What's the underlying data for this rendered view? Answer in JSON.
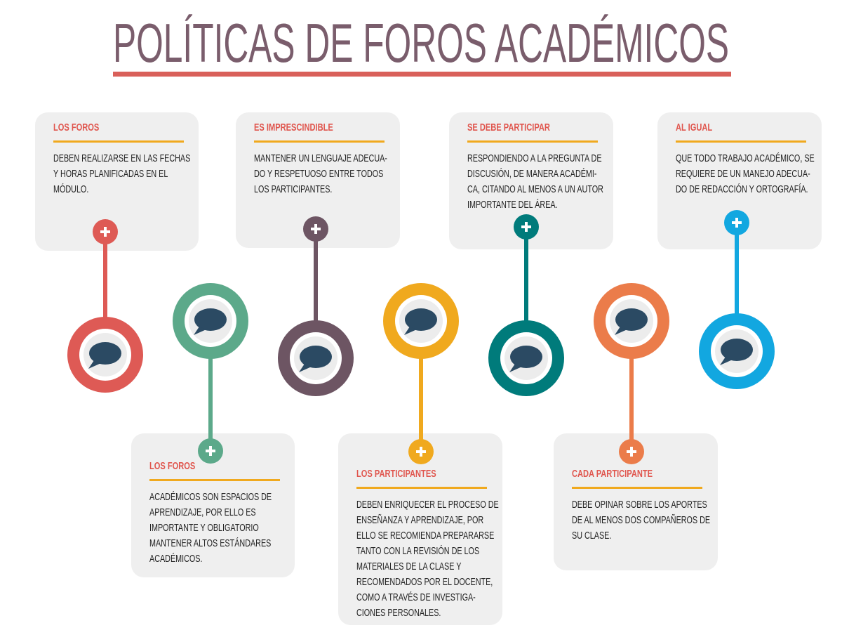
{
  "title": "POLÍTICAS DE FOROS ACADÉMICOS",
  "items": [
    {
      "heading": "LOS FOROS",
      "lines": [
        "DEBEN REALIZARSE EN LAS FECHAS",
        "Y HORAS PLANIFICADAS EN EL",
        "MÓDULO."
      ]
    },
    {
      "heading": "LOS FOROS",
      "lines": [
        "ACADÉMICOS SON ESPACIOS DE",
        "APRENDIZAJE, POR ELLO ES",
        "IMPORTANTE Y OBLIGATORIO",
        "MANTENER ALTOS ESTÁNDARES",
        "ACADÉMICOS."
      ]
    },
    {
      "heading": "ES IMPRESCINDIBLE",
      "lines": [
        "MANTENER UN LENGUAJE ADECUA-",
        "DO Y RESPETUOSO ENTRE TODOS",
        "LOS PARTICIPANTES."
      ]
    },
    {
      "heading": "LOS PARTICIPANTES",
      "lines": [
        "DEBEN ENRIQUECER EL PROCESO DE",
        "ENSEÑANZA Y APRENDIZAJE, POR",
        "ELLO SE RECOMIENDA PREPARARSE",
        "TANTO CON LA REVISIÓN DE LOS",
        "MATERIALES DE LA CLASE Y",
        "RECOMENDADOS POR EL DOCENTE,",
        "COMO A TRAVÉS DE INVESTIGA-",
        "CIONES PERSONALES."
      ]
    },
    {
      "heading": "SE DEBE PARTICIPAR",
      "lines": [
        "RESPONDIENDO A LA PREGUNTA DE",
        "DISCUSIÓN, DE MANERA ACADÉMI-",
        "CA, CITANDO AL MENOS A UN AUTOR",
        "IMPORTANTE DEL ÁREA."
      ]
    },
    {
      "heading": "CADA PARTICIPANTE",
      "lines": [
        "DEBE OPINAR SOBRE LOS APORTES",
        "DE AL MENOS DOS COMPAÑEROS DE",
        "SU CLASE."
      ]
    },
    {
      "heading": "AL IGUAL",
      "lines": [
        "QUE TODO TRABAJO ACADÉMICO, SE",
        "REQUIERE DE UN MANEJO ADECUA-",
        "DO DE REDACCIÓN Y ORTOGRAFÍA."
      ]
    }
  ]
}
